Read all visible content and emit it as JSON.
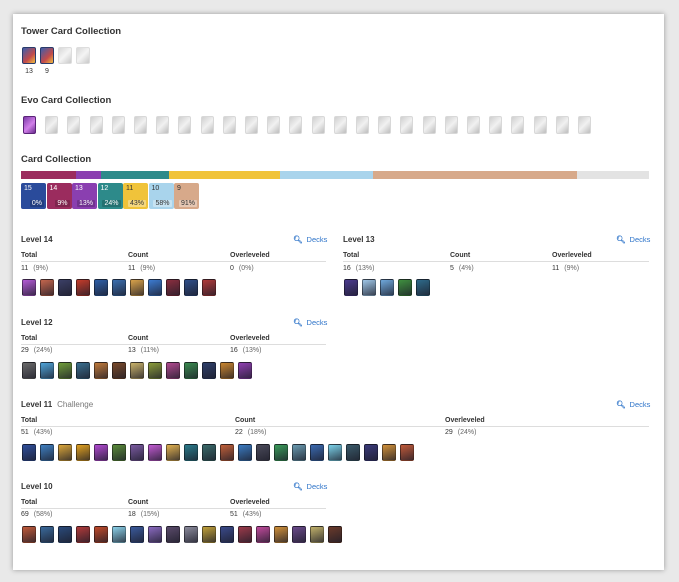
{
  "tower_section": {
    "title": "Tower Card Collection",
    "towers": [
      {
        "level": "13",
        "owned": true
      },
      {
        "level": "9",
        "owned": true
      },
      {
        "level": "",
        "owned": false
      },
      {
        "level": "",
        "owned": false
      }
    ]
  },
  "evo_section": {
    "title": "Evo Card Collection",
    "owned_count": 1,
    "total": 26
  },
  "card_section": {
    "title": "Card Collection",
    "level_boxes": [
      {
        "level": "15",
        "percent": "0%",
        "color": "#2a4b9b"
      },
      {
        "level": "14",
        "percent": "9%",
        "color": "#9b2c5e"
      },
      {
        "level": "13",
        "percent": "13%",
        "color": "#8a3fb0"
      },
      {
        "level": "12",
        "percent": "24%",
        "color": "#2d8a8a"
      },
      {
        "level": "11",
        "percent": "43%",
        "color": "#f0c33a"
      },
      {
        "level": "10",
        "percent": "58%",
        "color": "#a9d4ec"
      },
      {
        "level": "9",
        "percent": "91%",
        "color": "#d7a98a"
      }
    ],
    "bar_segments": [
      {
        "level": "14",
        "color": "#9b2c5e",
        "share": 0.088
      },
      {
        "level": "13",
        "color": "#8a3fb0",
        "share": 0.04
      },
      {
        "level": "12",
        "color": "#2d8a8a",
        "share": 0.108
      },
      {
        "level": "11",
        "color": "#f0c33a",
        "share": 0.177
      },
      {
        "level": "10",
        "color": "#a9d4ec",
        "share": 0.147
      },
      {
        "level": "9",
        "color": "#d7a98a",
        "share": 0.325
      },
      {
        "level": "other",
        "color": "#e3e3e3",
        "share": 0.115
      }
    ]
  },
  "labels": {
    "total": "Total",
    "count": "Count",
    "overleveled": "Overleveled",
    "decks": "Decks"
  },
  "levels": {
    "l14": {
      "title": "Level 14",
      "total": "11",
      "total_pct": "(9%)",
      "count": "11",
      "count_pct": "(9%)",
      "over": "0",
      "over_pct": "(0%)",
      "cards": [
        "#b45ad6",
        "#c4664d",
        "#3b3f66",
        "#c43b2b",
        "#2d5fa8",
        "#3a6fb0",
        "#d9a24a",
        "#3c7bd1",
        "#8a2e3f",
        "#2f4f8a",
        "#b03a3a"
      ]
    },
    "l13": {
      "title": "Level 13",
      "total": "16",
      "total_pct": "(13%)",
      "count": "5",
      "count_pct": "(4%)",
      "over": "11",
      "over_pct": "(9%)",
      "cards": [
        "#4b3a8f",
        "#9fc7e8",
        "#6fa8dc",
        "#3f8f3f",
        "#2e6a8a"
      ]
    },
    "l12": {
      "title": "Level 12",
      "total": "29",
      "total_pct": "(24%)",
      "count": "13",
      "count_pct": "(11%)",
      "over": "16",
      "over_pct": "(13%)",
      "cards": [
        "#6b6b6b",
        "#4fa3d8",
        "#6f9c3a",
        "#3a6f8f",
        "#c07a3b",
        "#7a4a2a",
        "#c9b26a",
        "#8a9b3a",
        "#b04a8f",
        "#3a8a4f",
        "#2f3f6a",
        "#c9852f",
        "#8f3fb0"
      ]
    },
    "l11": {
      "title": "Level 11",
      "sub": "Challenge",
      "total": "51",
      "total_pct": "(43%)",
      "count": "22",
      "count_pct": "(18%)",
      "over": "29",
      "over_pct": "(24%)",
      "cards": [
        "#2f4f9b",
        "#3f7fc0",
        "#d9a53a",
        "#e0a020",
        "#b04ad0",
        "#5a8a3a",
        "#7a5aa0",
        "#c05ad0",
        "#e0b050",
        "#2a7a8a",
        "#3a6a6a",
        "#c0603a",
        "#3a7ac0",
        "#4a4a5a",
        "#3a9a5a",
        "#6a9ab0",
        "#3a6ab0",
        "#7ad0e8",
        "#3a5a6a",
        "#3a3a7a",
        "#d0903a",
        "#c05a3a"
      ]
    },
    "l10": {
      "title": "Level 10",
      "total": "69",
      "total_pct": "(58%)",
      "count": "18",
      "count_pct": "(15%)",
      "over": "51",
      "over_pct": "(43%)",
      "cards": [
        "#c05a3a",
        "#3a6a9b",
        "#2a4a7a",
        "#b03a3a",
        "#c04a2a",
        "#8ad0e8",
        "#3a5a9b",
        "#8a6ac0",
        "#5a4a6a",
        "#8a8a9b",
        "#c0a03a",
        "#3a4a8a",
        "#9b3a4a",
        "#c04a9b",
        "#d0903a",
        "#6a4a8a",
        "#c0b06a",
        "#6a3a2a"
      ]
    }
  }
}
